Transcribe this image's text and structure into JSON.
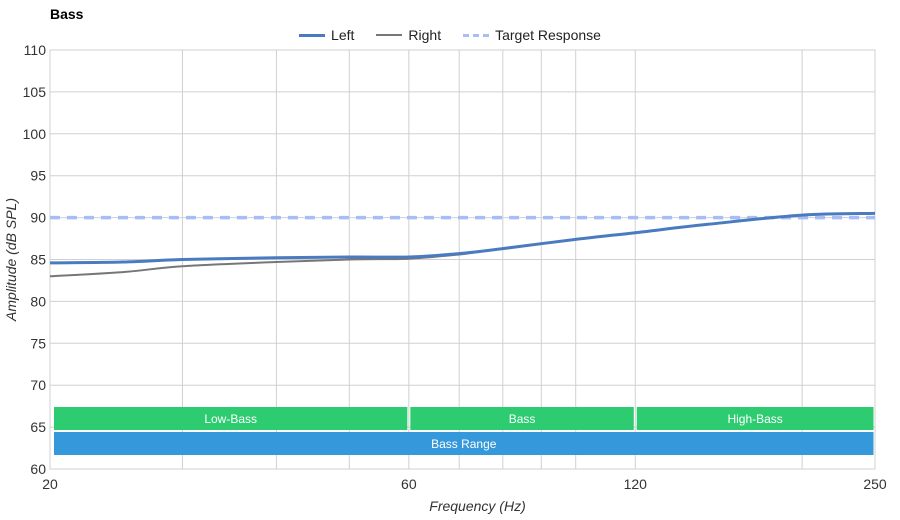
{
  "chart_data": {
    "type": "line",
    "title": "Bass",
    "xlabel": "Frequency (Hz)",
    "ylabel": "Amplitude (dB SPL)",
    "x_scale": "log",
    "xlim": [
      20,
      250
    ],
    "ylim": [
      60,
      110
    ],
    "x_ticks": [
      20,
      60,
      120,
      250
    ],
    "x_tick_labels": [
      "20",
      "60",
      "120",
      "250"
    ],
    "x_minor_gridlines": [
      30,
      40,
      50,
      70,
      80,
      90,
      100,
      200
    ],
    "y_ticks": [
      60,
      65,
      70,
      75,
      80,
      85,
      90,
      95,
      100,
      105,
      110
    ],
    "grid": true,
    "legend_position": "top-center",
    "series": [
      {
        "name": "Left",
        "color": "#4a7bc0",
        "x": [
          20,
          25,
          30,
          40,
          50,
          60,
          70,
          80,
          100,
          120,
          150,
          200,
          250
        ],
        "y": [
          84.6,
          84.7,
          85.0,
          85.2,
          85.3,
          85.3,
          85.7,
          86.3,
          87.4,
          88.2,
          89.2,
          90.3,
          90.5
        ]
      },
      {
        "name": "Right",
        "color": "#777777",
        "x": [
          20,
          25,
          30,
          40,
          50,
          60,
          70,
          80,
          100,
          120,
          150,
          200,
          250
        ],
        "y": [
          83.0,
          83.5,
          84.2,
          84.7,
          85.0,
          85.1,
          85.6,
          86.3,
          87.4,
          88.2,
          89.2,
          90.3,
          90.5
        ]
      },
      {
        "name": "Target Response",
        "color": "#a8bdf5",
        "dashed": true,
        "x": [
          20,
          250
        ],
        "y": [
          90,
          90
        ]
      }
    ],
    "bands": [
      {
        "label": "Low-Bass",
        "from": 20,
        "to": 60,
        "row": 1,
        "color": "#2ecc71"
      },
      {
        "label": "Bass",
        "from": 60,
        "to": 120,
        "row": 1,
        "color": "#2ecc71"
      },
      {
        "label": "High-Bass",
        "from": 120,
        "to": 250,
        "row": 1,
        "color": "#2ecc71"
      },
      {
        "label": "Bass Range",
        "from": 20,
        "to": 250,
        "row": 2,
        "color": "#3498db"
      }
    ]
  }
}
